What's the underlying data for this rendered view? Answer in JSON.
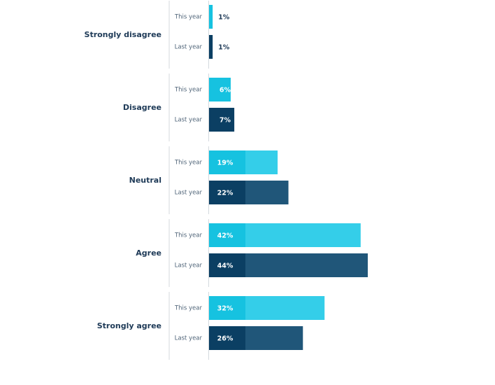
{
  "chart_data": {
    "type": "bar",
    "orientation": "horizontal",
    "title": "",
    "xlabel": "",
    "ylabel": "",
    "grid": false,
    "legend": "none",
    "value_unit": "%",
    "xlim": [
      0,
      50
    ],
    "categories": [
      "Strongly disagree",
      "Disagree",
      "Neutral",
      "Agree",
      "Strongly agree"
    ],
    "series": [
      {
        "label": "This year",
        "color": "#16c2e0",
        "texture_color": "#3ad0ea",
        "values": [
          1,
          6,
          19,
          42,
          32
        ]
      },
      {
        "label": "Last year",
        "color": "#0b3f63",
        "texture_color": "#245a7c",
        "values": [
          1,
          7,
          22,
          44,
          26
        ]
      }
    ],
    "value_labels": [
      [
        "1%",
        "6%",
        "19%",
        "42%",
        "32%"
      ],
      [
        "1%",
        "7%",
        "22%",
        "44%",
        "26%"
      ]
    ],
    "colors": {
      "category_text": "#1e3a57",
      "series_text": "#4f6478",
      "divider": "#d4d9de",
      "outside_value_text": "#1e3a57",
      "inside_value_text": "#ffffff"
    }
  }
}
